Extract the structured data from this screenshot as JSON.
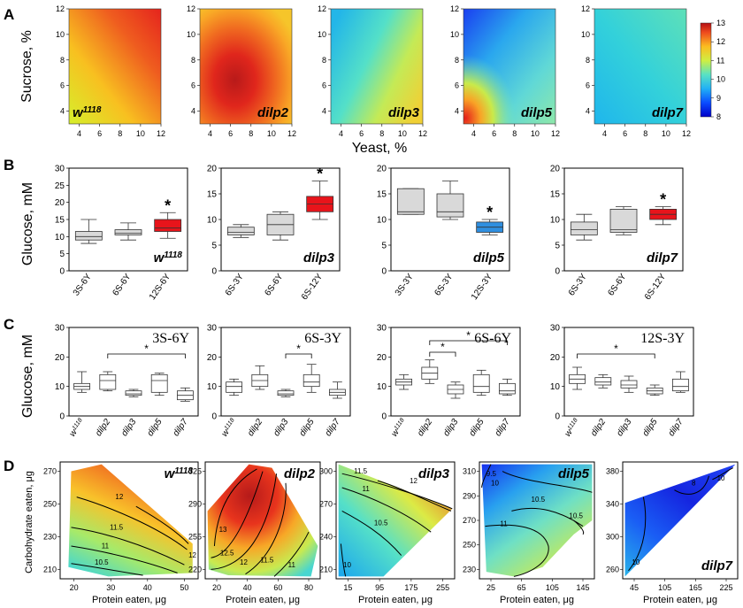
{
  "figure": {
    "panel_letters": [
      "A",
      "B",
      "C",
      "D"
    ]
  },
  "colors": {
    "box_gray": "#d9d9d9",
    "box_red": "#e8141b",
    "box_blue": "#2f8fe0"
  },
  "chart_data": [
    {
      "type": "heatmap",
      "panel": "A",
      "ylabel": "Sucrose, %",
      "xlabel": "Yeast, %",
      "xlim": [
        3,
        12
      ],
      "ylim": [
        3,
        12
      ],
      "x_ticks": [
        "4",
        "6",
        "8",
        "10",
        "12"
      ],
      "y_ticks": [
        "4",
        "6",
        "8",
        "10",
        "12"
      ],
      "colorbar": {
        "min": 8,
        "max": 13,
        "ticks": [
          "8",
          "9",
          "10",
          "11",
          "12",
          "13"
        ]
      },
      "maps": [
        {
          "name": "w1118",
          "label": "w",
          "label_sup": "1118"
        },
        {
          "name": "dilp2",
          "label": "dilp2"
        },
        {
          "name": "dilp3",
          "label": "dilp3"
        },
        {
          "name": "dilp5",
          "label": "dilp5"
        },
        {
          "name": "dilp7",
          "label": "dilp7"
        }
      ]
    },
    {
      "type": "box",
      "panel": "B",
      "ylabel": "Glucose, mM",
      "plots": [
        {
          "label": "w",
          "label_sup": "1118",
          "ylim": [
            0,
            30
          ],
          "yticks": [
            "0",
            "5",
            "10",
            "15",
            "20",
            "25",
            "30"
          ],
          "axis": true,
          "categories": [
            "3S-6Y",
            "6S-6Y",
            "12S-6Y"
          ],
          "boxes": [
            [
              8,
              9,
              10,
              11.5,
              15
            ],
            [
              9,
              10.5,
              11,
              12,
              14
            ],
            [
              9.5,
              11.5,
              12.5,
              15,
              17
            ]
          ],
          "colors": [
            "gray",
            "gray",
            "red"
          ],
          "star": 2
        },
        {
          "label": "dilp3",
          "ylim": [
            0,
            20
          ],
          "yticks": [
            "0",
            "5",
            "10",
            "15",
            "20"
          ],
          "categories": [
            "6S-3Y",
            "6S-6Y",
            "6S-12Y"
          ],
          "boxes": [
            [
              6.5,
              7,
              7.5,
              8.5,
              9
            ],
            [
              6,
              7,
              9,
              11,
              11.5
            ],
            [
              10,
              11.5,
              13,
              14.5,
              17.5
            ]
          ],
          "colors": [
            "gray",
            "gray",
            "red"
          ],
          "star": 2
        },
        {
          "label": "dilp5",
          "ylim": [
            0,
            20
          ],
          "yticks": [
            "0",
            "5",
            "10",
            "15",
            "20"
          ],
          "categories": [
            "3S-3Y",
            "6S-3Y",
            "12S-3Y"
          ],
          "boxes": [
            [
              11,
              11,
              11.5,
              16,
              16
            ],
            [
              10,
              10.5,
              11.5,
              15,
              17.5
            ],
            [
              7,
              7.5,
              8.5,
              9.5,
              10
            ]
          ],
          "colors": [
            "gray",
            "gray",
            "blue"
          ],
          "star": 2
        },
        {
          "label": "dilp7",
          "ylim": [
            0,
            20
          ],
          "yticks": [
            "0",
            "5",
            "10",
            "15",
            "20"
          ],
          "categories": [
            "6S-3Y",
            "6S-6Y",
            "6S-12Y"
          ],
          "boxes": [
            [
              6,
              7,
              8,
              9.5,
              11
            ],
            [
              7,
              7.5,
              8,
              12,
              12.5
            ],
            [
              9,
              10,
              11,
              12,
              12.5
            ]
          ],
          "colors": [
            "gray",
            "gray",
            "red"
          ],
          "star": 2
        }
      ]
    },
    {
      "type": "box",
      "panel": "C",
      "ylabel": "Glucose, mM",
      "categories": [
        "w1118",
        "dilp2",
        "dilp3",
        "dilp5",
        "dilp7"
      ],
      "category_labels": [
        {
          "base": "w",
          "sup": "1118"
        },
        {
          "base": "dilp2"
        },
        {
          "base": "dilp3"
        },
        {
          "base": "dilp5"
        },
        {
          "base": "dilp7"
        }
      ],
      "plots": [
        {
          "title": "3S-6Y",
          "ylim": [
            0,
            30
          ],
          "yticks": [
            "0",
            "10",
            "20",
            "30"
          ],
          "axis": true,
          "boxes": [
            [
              8,
              9,
              10,
              11,
              15
            ],
            [
              8.5,
              9,
              12,
              14,
              15
            ],
            [
              6.5,
              7,
              7.5,
              8.5,
              9
            ],
            [
              7,
              8,
              12,
              14,
              14.5
            ],
            [
              5,
              5.5,
              7,
              8.5,
              9.5
            ]
          ],
          "sig": [
            {
              "from": 1,
              "to": 4,
              "level": 0.7,
              "label": "*"
            }
          ]
        },
        {
          "title": "6S-3Y",
          "ylim": [
            0,
            30
          ],
          "yticks": [
            "0",
            "10",
            "20",
            "30"
          ],
          "boxes": [
            [
              7,
              8,
              10,
              11.5,
              12.5
            ],
            [
              9,
              10,
              12,
              14,
              17
            ],
            [
              6.5,
              7,
              7.5,
              8.5,
              9
            ],
            [
              8,
              10,
              11.5,
              14,
              17.5
            ],
            [
              6,
              7,
              8,
              9,
              11.5
            ]
          ],
          "sig": [
            {
              "from": 2,
              "to": 3,
              "level": 0.7,
              "label": "*"
            }
          ]
        },
        {
          "title": "6S-6Y",
          "ylim": [
            0,
            30
          ],
          "yticks": [
            "0",
            "10",
            "20",
            "30"
          ],
          "boxes": [
            [
              9,
              10.5,
              11.5,
              12.5,
              14
            ],
            [
              11,
              12.5,
              14.5,
              16.5,
              19
            ],
            [
              6,
              7.5,
              9,
              10.5,
              11.5
            ],
            [
              7,
              8,
              10,
              14,
              15.5
            ],
            [
              7,
              7.5,
              8.5,
              11,
              12.5
            ]
          ],
          "sig": [
            {
              "from": 1,
              "to": 2,
              "level": 0.72,
              "label": "*"
            },
            {
              "from": 1,
              "to": 4,
              "level": 0.85,
              "label": "*"
            }
          ]
        },
        {
          "title": "12S-3Y",
          "ylim": [
            0,
            30
          ],
          "yticks": [
            "0",
            "10",
            "20",
            "30"
          ],
          "boxes": [
            [
              9,
              11,
              12.5,
              14,
              16.5
            ],
            [
              9.5,
              10.5,
              11.5,
              13,
              14
            ],
            [
              8,
              9.5,
              10.5,
              12,
              13.5
            ],
            [
              7,
              7.5,
              8.5,
              9.5,
              10.5
            ],
            [
              8,
              8.5,
              10,
              12.5,
              15
            ]
          ],
          "sig": [
            {
              "from": 0,
              "to": 3,
              "level": 0.7,
              "label": "*"
            }
          ]
        }
      ]
    },
    {
      "type": "contour",
      "panel": "D",
      "ylabel": "Carbohydrate eaten, μg",
      "xlabel": "Protein eaten, μg",
      "plots": [
        {
          "name": "w1118",
          "label": "w",
          "label_sup": "1118",
          "axis": true,
          "x_ticks": [
            "20",
            "30",
            "40",
            "50"
          ],
          "y_ticks": [
            "210",
            "230",
            "250",
            "270"
          ],
          "contour_labels": [
            "12",
            "11.5",
            "11",
            "10.5",
            "12"
          ]
        },
        {
          "name": "dilp2",
          "label": "dilp2",
          "x_ticks": [
            "20",
            "40",
            "60",
            "80"
          ],
          "y_ticks": [
            "220",
            "255",
            "290",
            "325"
          ],
          "contour_labels": [
            "13",
            "12.5",
            "12",
            "11.5",
            "11"
          ]
        },
        {
          "name": "dilp3",
          "label": "dilp3",
          "x_ticks": [
            "15",
            "95",
            "175",
            "255"
          ],
          "y_ticks": [
            "210",
            "240",
            "270",
            "300"
          ],
          "contour_labels": [
            "11.5",
            "11",
            "12",
            "10.5",
            "10"
          ]
        },
        {
          "name": "dilp5",
          "label": "dilp5",
          "x_ticks": [
            "25",
            "65",
            "105",
            "145"
          ],
          "y_ticks": [
            "230",
            "250",
            "270",
            "290",
            "310"
          ],
          "contour_labels": [
            "9.5",
            "10",
            "10.5",
            "11",
            "10.5"
          ]
        },
        {
          "name": "dilp7",
          "label": "dilp7",
          "x_ticks": [
            "45",
            "105",
            "165",
            "225"
          ],
          "y_ticks": [
            "260",
            "300",
            "340",
            "380"
          ],
          "contour_labels": [
            "8",
            "10",
            "10"
          ]
        }
      ]
    }
  ]
}
